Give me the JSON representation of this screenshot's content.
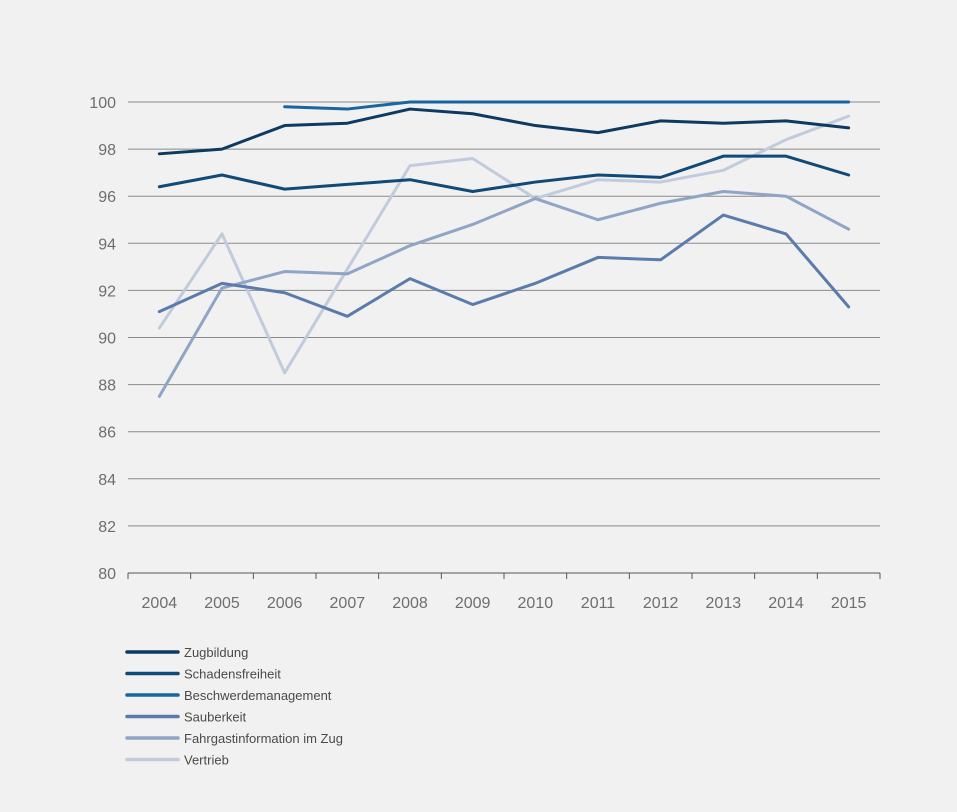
{
  "chart_data": {
    "type": "line",
    "title": "",
    "xlabel": "",
    "ylabel": "",
    "x": [
      "2004",
      "2005",
      "2006",
      "2007",
      "2008",
      "2009",
      "2010",
      "2011",
      "2012",
      "2013",
      "2014",
      "2015"
    ],
    "ylim": [
      80,
      100
    ],
    "yticks": [
      80,
      82,
      84,
      86,
      88,
      90,
      92,
      94,
      96,
      98,
      100
    ],
    "grid": "horizontal",
    "legend_position": "bottom-left",
    "series": [
      {
        "name": "Zugbildung",
        "color": "#0d3a63",
        "values": [
          97.8,
          98.0,
          99.0,
          99.1,
          99.7,
          99.5,
          99.0,
          98.7,
          99.2,
          99.1,
          99.2,
          98.9
        ]
      },
      {
        "name": "Schadensfreiheit",
        "color": "#0f4a78",
        "values": [
          96.4,
          96.9,
          96.3,
          96.5,
          96.7,
          96.2,
          96.6,
          96.9,
          96.8,
          97.7,
          97.7,
          96.9
        ]
      },
      {
        "name": "Beschwerdemanagement",
        "color": "#1766a3",
        "values": [
          null,
          null,
          99.8,
          99.7,
          100.0,
          100.0,
          100.0,
          100.0,
          100.0,
          100.0,
          100.0,
          100.0
        ]
      },
      {
        "name": "Sauberkeit",
        "color": "#5a7bab",
        "values": [
          91.1,
          92.3,
          91.9,
          90.9,
          92.5,
          91.4,
          92.3,
          93.4,
          93.3,
          95.2,
          94.4,
          91.3
        ]
      },
      {
        "name": "Fahrgastinformation im Zug",
        "color": "#90a4c6",
        "values": [
          87.5,
          92.1,
          92.8,
          92.7,
          93.9,
          94.8,
          95.9,
          95.0,
          95.7,
          96.2,
          96.0,
          94.6
        ]
      },
      {
        "name": "Vertrieb",
        "color": "#c1cbdc",
        "values": [
          90.4,
          94.4,
          88.5,
          92.9,
          97.3,
          97.6,
          95.9,
          96.7,
          96.6,
          97.1,
          98.4,
          99.4
        ]
      }
    ]
  }
}
